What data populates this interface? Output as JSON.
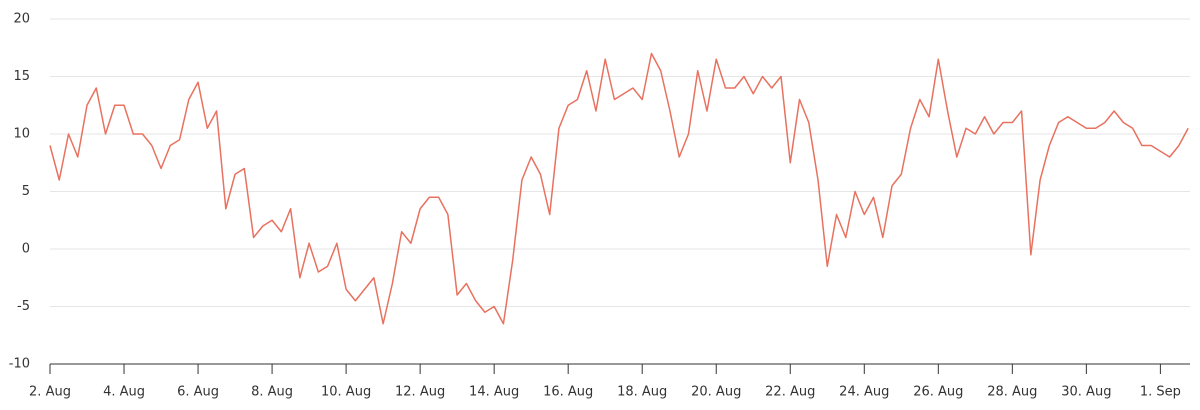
{
  "chart_data": {
    "type": "line",
    "x": [
      0,
      0.25,
      0.5,
      0.75,
      1,
      1.25,
      1.5,
      1.75,
      2,
      2.25,
      2.5,
      2.75,
      3,
      3.25,
      3.5,
      3.75,
      4,
      4.25,
      4.5,
      4.75,
      5,
      5.25,
      5.5,
      5.75,
      6,
      6.25,
      6.5,
      6.75,
      7,
      7.25,
      7.5,
      7.75,
      8,
      8.25,
      8.5,
      8.75,
      9,
      9.25,
      9.5,
      9.75,
      10,
      10.25,
      10.5,
      10.75,
      11,
      11.25,
      11.5,
      11.75,
      12,
      12.25,
      12.5,
      12.75,
      13,
      13.25,
      13.5,
      13.75,
      14,
      14.25,
      14.5,
      14.75,
      15,
      15.25,
      15.5,
      15.75,
      16,
      16.25,
      16.5,
      16.75,
      17,
      17.25,
      17.5,
      17.75,
      18,
      18.25,
      18.5,
      18.75,
      19,
      19.25,
      19.5,
      19.75,
      20,
      20.25,
      20.5,
      20.75,
      21,
      21.25,
      21.5,
      21.75,
      22,
      22.25,
      22.5,
      22.75,
      23,
      23.25,
      23.5,
      23.75,
      24,
      24.25,
      24.5,
      24.75,
      25,
      25.25,
      25.5,
      25.75,
      26,
      26.25,
      26.5,
      26.75,
      27,
      27.25,
      27.5,
      27.75,
      28,
      28.25,
      28.5,
      28.75,
      29,
      29.25,
      29.5,
      29.75,
      30,
      30.25,
      30.5,
      30.75
    ],
    "series": [
      {
        "color": "#e8715f",
        "values": [
          9,
          6,
          10,
          8,
          12.5,
          14,
          10,
          12.5,
          12.5,
          10,
          10,
          9,
          7,
          9,
          9.5,
          13,
          14.5,
          10.5,
          12,
          3.5,
          6.5,
          7,
          1,
          2,
          2.5,
          1.5,
          3.5,
          -2.5,
          0.5,
          -2,
          -1.5,
          0.5,
          -3.5,
          -4.5,
          -3.5,
          -2.5,
          -6.5,
          -3,
          1.5,
          0.5,
          3.5,
          4.5,
          4.5,
          3,
          -4,
          -3,
          -4.5,
          -5.5,
          -5,
          -6.5,
          -1,
          6,
          8,
          6.5,
          3,
          10.5,
          12.5,
          13,
          15.5,
          12,
          16.5,
          13,
          13.5,
          14,
          13,
          17,
          15.5,
          12,
          8,
          10,
          15.5,
          12,
          16.5,
          14,
          14,
          15,
          13.5,
          15,
          14,
          15,
          7.5,
          13,
          11,
          6,
          -1.5,
          3,
          1,
          5,
          3,
          4.5,
          1,
          5.5,
          6.5,
          10.5,
          13,
          11.5,
          16.5,
          12,
          8,
          10.5,
          10,
          11.5,
          10,
          11,
          11,
          12,
          -0.5,
          6,
          9,
          11,
          11.5,
          11,
          10.5,
          10.5,
          11,
          12,
          11,
          10.5,
          9,
          9,
          8.5,
          8,
          9,
          10.5
        ]
      }
    ],
    "xlim": [
      0,
      30.8
    ],
    "xticks": [
      {
        "value": 0,
        "label": "2. Aug"
      },
      {
        "value": 2,
        "label": "4. Aug"
      },
      {
        "value": 4,
        "label": "6. Aug"
      },
      {
        "value": 6,
        "label": "8. Aug"
      },
      {
        "value": 8,
        "label": "10. Aug"
      },
      {
        "value": 10,
        "label": "12. Aug"
      },
      {
        "value": 12,
        "label": "14. Aug"
      },
      {
        "value": 14,
        "label": "16. Aug"
      },
      {
        "value": 16,
        "label": "18. Aug"
      },
      {
        "value": 18,
        "label": "20. Aug"
      },
      {
        "value": 20,
        "label": "22. Aug"
      },
      {
        "value": 22,
        "label": "24. Aug"
      },
      {
        "value": 24,
        "label": "26. Aug"
      },
      {
        "value": 26,
        "label": "28. Aug"
      },
      {
        "value": 28,
        "label": "30. Aug"
      },
      {
        "value": 30,
        "label": "1. Sep"
      }
    ],
    "ylim": [
      -10,
      20
    ],
    "yticks": [
      -10,
      -5,
      0,
      5,
      10,
      15,
      20
    ],
    "grid": true
  }
}
